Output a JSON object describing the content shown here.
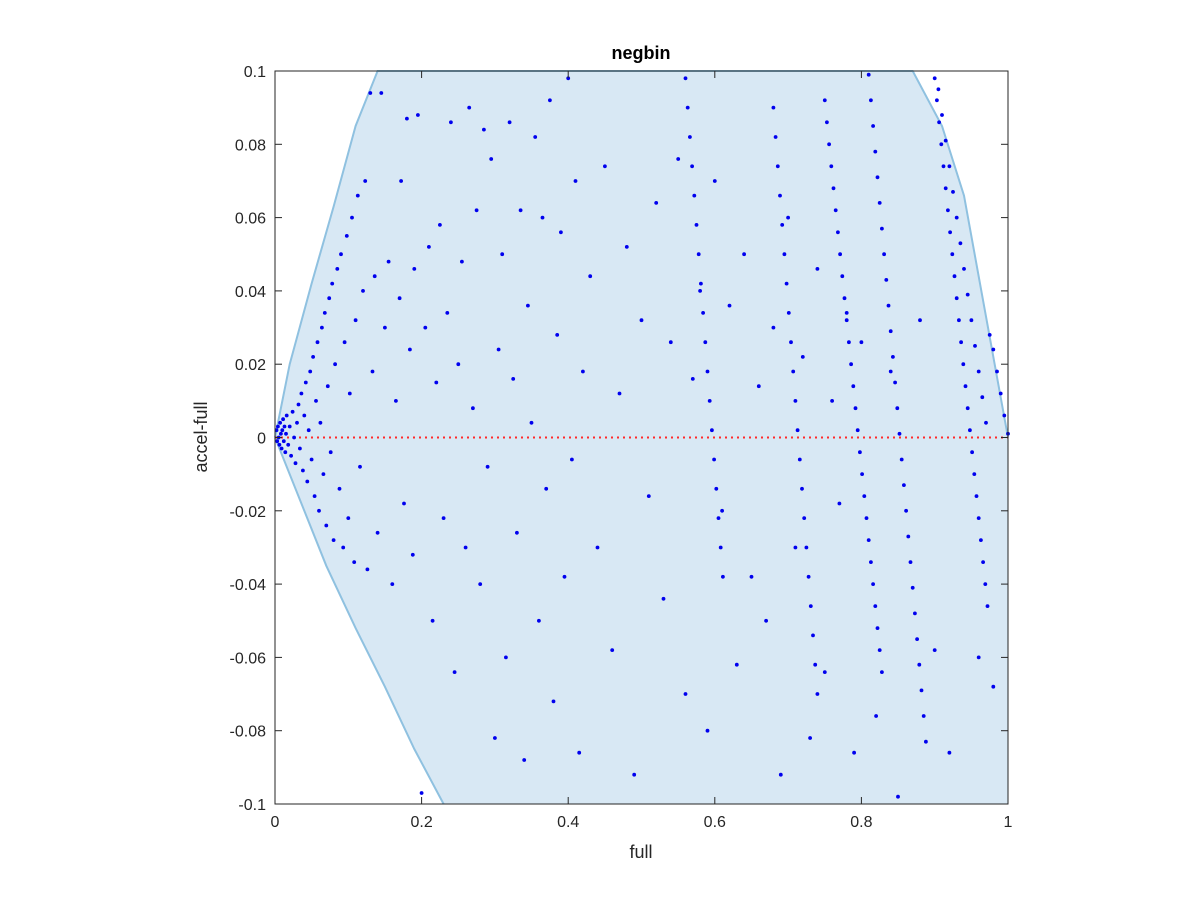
{
  "chart_data": {
    "type": "scatter",
    "title": "negbin",
    "xlabel": "full",
    "ylabel": "accel-full",
    "xlim": [
      0,
      1
    ],
    "ylim": [
      -0.1,
      0.1
    ],
    "xticks": [
      0,
      0.2,
      0.4,
      0.6,
      0.8,
      1
    ],
    "xtick_labels": [
      "0",
      "0.2",
      "0.4",
      "0.6",
      "0.8",
      "1"
    ],
    "yticks": [
      -0.1,
      -0.08,
      -0.06,
      -0.04,
      -0.02,
      0,
      0.02,
      0.04,
      0.06,
      0.08,
      0.1
    ],
    "ytick_labels": [
      "-0.1",
      "-0.08",
      "-0.06",
      "-0.04",
      "-0.02",
      "0",
      "0.02",
      "0.04",
      "0.06",
      "0.08",
      "0.1"
    ],
    "grid": false,
    "colors": {
      "points": "#0000ee",
      "region_fill": "#d8e8f4",
      "region_edge": "#8fc1e0",
      "zero_line": "#ff2a2a",
      "axes": "#262626"
    },
    "reference_line": {
      "y": 0,
      "style": "dotted"
    },
    "region_upper": {
      "x": [
        0,
        0.02,
        0.05,
        0.08,
        0.11,
        0.14,
        0.87,
        0.91,
        0.94,
        0.97,
        1.0
      ],
      "y": [
        0,
        0.02,
        0.042,
        0.063,
        0.085,
        0.1,
        0.1,
        0.085,
        0.066,
        0.033,
        0
      ]
    },
    "region_lower": {
      "x": [
        0,
        0.03,
        0.07,
        0.11,
        0.15,
        0.19,
        0.23,
        1.0
      ],
      "y": [
        0,
        -0.015,
        -0.035,
        -0.052,
        -0.068,
        -0.085,
        -0.1,
        -0.1
      ]
    },
    "points": [
      [
        0.002,
        0.002
      ],
      [
        0.003,
        -0.001
      ],
      [
        0.004,
        0.003
      ],
      [
        0.005,
        0.0
      ],
      [
        0.006,
        -0.002
      ],
      [
        0.007,
        0.004
      ],
      [
        0.008,
        0.001
      ],
      [
        0.009,
        -0.003
      ],
      [
        0.01,
        0.002
      ],
      [
        0.011,
        0.005
      ],
      [
        0.012,
        -0.001
      ],
      [
        0.013,
        0.003
      ],
      [
        0.014,
        -0.004
      ],
      [
        0.015,
        0.001
      ],
      [
        0.016,
        0.006
      ],
      [
        0.018,
        -0.002
      ],
      [
        0.02,
        0.003
      ],
      [
        0.022,
        -0.005
      ],
      [
        0.024,
        0.007
      ],
      [
        0.026,
        0.0
      ],
      [
        0.028,
        -0.007
      ],
      [
        0.03,
        0.004
      ],
      [
        0.032,
        0.009
      ],
      [
        0.034,
        -0.003
      ],
      [
        0.036,
        0.012
      ],
      [
        0.038,
        -0.009
      ],
      [
        0.04,
        0.006
      ],
      [
        0.042,
        0.015
      ],
      [
        0.044,
        -0.012
      ],
      [
        0.046,
        0.002
      ],
      [
        0.048,
        0.018
      ],
      [
        0.05,
        -0.006
      ],
      [
        0.052,
        0.022
      ],
      [
        0.054,
        -0.016
      ],
      [
        0.056,
        0.01
      ],
      [
        0.058,
        0.026
      ],
      [
        0.06,
        -0.02
      ],
      [
        0.062,
        0.004
      ],
      [
        0.064,
        0.03
      ],
      [
        0.066,
        -0.01
      ],
      [
        0.068,
        0.034
      ],
      [
        0.07,
        -0.024
      ],
      [
        0.072,
        0.014
      ],
      [
        0.074,
        0.038
      ],
      [
        0.076,
        -0.004
      ],
      [
        0.078,
        0.042
      ],
      [
        0.08,
        -0.028
      ],
      [
        0.082,
        0.02
      ],
      [
        0.085,
        0.046
      ],
      [
        0.088,
        -0.014
      ],
      [
        0.09,
        0.05
      ],
      [
        0.093,
        -0.03
      ],
      [
        0.095,
        0.026
      ],
      [
        0.098,
        0.055
      ],
      [
        0.1,
        -0.022
      ],
      [
        0.102,
        0.012
      ],
      [
        0.105,
        0.06
      ],
      [
        0.108,
        -0.034
      ],
      [
        0.11,
        0.032
      ],
      [
        0.113,
        0.066
      ],
      [
        0.116,
        -0.008
      ],
      [
        0.12,
        0.04
      ],
      [
        0.123,
        0.07
      ],
      [
        0.126,
        -0.036
      ],
      [
        0.13,
        0.094
      ],
      [
        0.133,
        0.018
      ],
      [
        0.136,
        0.044
      ],
      [
        0.14,
        -0.026
      ],
      [
        0.145,
        0.094
      ],
      [
        0.15,
        0.03
      ],
      [
        0.155,
        0.048
      ],
      [
        0.16,
        -0.04
      ],
      [
        0.165,
        0.01
      ],
      [
        0.17,
        0.038
      ],
      [
        0.172,
        0.07
      ],
      [
        0.176,
        -0.018
      ],
      [
        0.18,
        0.087
      ],
      [
        0.184,
        0.024
      ],
      [
        0.188,
        -0.032
      ],
      [
        0.19,
        0.046
      ],
      [
        0.195,
        0.088
      ],
      [
        0.2,
        -0.097
      ],
      [
        0.205,
        0.03
      ],
      [
        0.21,
        0.052
      ],
      [
        0.215,
        -0.05
      ],
      [
        0.22,
        0.015
      ],
      [
        0.225,
        0.058
      ],
      [
        0.23,
        -0.022
      ],
      [
        0.235,
        0.034
      ],
      [
        0.24,
        0.086
      ],
      [
        0.245,
        -0.064
      ],
      [
        0.25,
        0.02
      ],
      [
        0.255,
        0.048
      ],
      [
        0.26,
        -0.03
      ],
      [
        0.265,
        0.09
      ],
      [
        0.27,
        0.008
      ],
      [
        0.275,
        0.062
      ],
      [
        0.28,
        -0.04
      ],
      [
        0.285,
        0.084
      ],
      [
        0.29,
        -0.008
      ],
      [
        0.295,
        0.076
      ],
      [
        0.3,
        -0.082
      ],
      [
        0.305,
        0.024
      ],
      [
        0.31,
        0.05
      ],
      [
        0.315,
        -0.06
      ],
      [
        0.32,
        0.086
      ],
      [
        0.325,
        0.016
      ],
      [
        0.33,
        -0.026
      ],
      [
        0.335,
        0.062
      ],
      [
        0.34,
        -0.088
      ],
      [
        0.345,
        0.036
      ],
      [
        0.35,
        0.004
      ],
      [
        0.355,
        0.082
      ],
      [
        0.36,
        -0.05
      ],
      [
        0.365,
        0.06
      ],
      [
        0.37,
        -0.014
      ],
      [
        0.375,
        0.092
      ],
      [
        0.38,
        -0.072
      ],
      [
        0.385,
        0.028
      ],
      [
        0.39,
        0.056
      ],
      [
        0.395,
        -0.038
      ],
      [
        0.4,
        0.098
      ],
      [
        0.405,
        -0.006
      ],
      [
        0.41,
        0.07
      ],
      [
        0.415,
        -0.086
      ],
      [
        0.42,
        0.018
      ],
      [
        0.43,
        0.044
      ],
      [
        0.44,
        -0.03
      ],
      [
        0.45,
        0.074
      ],
      [
        0.46,
        -0.058
      ],
      [
        0.47,
        0.012
      ],
      [
        0.48,
        0.052
      ],
      [
        0.49,
        -0.092
      ],
      [
        0.5,
        0.032
      ],
      [
        0.51,
        -0.016
      ],
      [
        0.52,
        0.064
      ],
      [
        0.53,
        -0.044
      ],
      [
        0.54,
        0.026
      ],
      [
        0.55,
        0.076
      ],
      [
        0.56,
        -0.07
      ],
      [
        0.57,
        0.016
      ],
      [
        0.58,
        0.04
      ],
      [
        0.59,
        -0.08
      ],
      [
        0.6,
        0.07
      ],
      [
        0.61,
        -0.02
      ],
      [
        0.62,
        0.036
      ],
      [
        0.63,
        -0.062
      ],
      [
        0.64,
        0.05
      ],
      [
        0.65,
        -0.038
      ],
      [
        0.66,
        0.014
      ],
      [
        0.67,
        -0.05
      ],
      [
        0.68,
        0.03
      ],
      [
        0.69,
        -0.092
      ],
      [
        0.7,
        0.06
      ],
      [
        0.71,
        -0.03
      ],
      [
        0.72,
        0.022
      ],
      [
        0.73,
        -0.082
      ],
      [
        0.74,
        0.046
      ],
      [
        0.75,
        -0.064
      ],
      [
        0.76,
        0.01
      ],
      [
        0.77,
        -0.018
      ],
      [
        0.78,
        0.034
      ],
      [
        0.79,
        -0.086
      ],
      [
        0.8,
        0.026
      ],
      [
        0.82,
        -0.076
      ],
      [
        0.84,
        0.018
      ],
      [
        0.85,
        -0.098
      ],
      [
        0.88,
        0.032
      ],
      [
        0.9,
        -0.058
      ],
      [
        0.92,
        -0.086
      ],
      [
        0.96,
        -0.06
      ],
      [
        0.98,
        -0.068
      ],
      [
        0.56,
        0.098
      ],
      [
        0.563,
        0.09
      ],
      [
        0.566,
        0.082
      ],
      [
        0.569,
        0.074
      ],
      [
        0.572,
        0.066
      ],
      [
        0.575,
        0.058
      ],
      [
        0.578,
        0.05
      ],
      [
        0.581,
        0.042
      ],
      [
        0.584,
        0.034
      ],
      [
        0.587,
        0.026
      ],
      [
        0.59,
        0.018
      ],
      [
        0.593,
        0.01
      ],
      [
        0.596,
        0.002
      ],
      [
        0.599,
        -0.006
      ],
      [
        0.602,
        -0.014
      ],
      [
        0.605,
        -0.022
      ],
      [
        0.608,
        -0.03
      ],
      [
        0.611,
        -0.038
      ],
      [
        0.68,
        0.09
      ],
      [
        0.683,
        0.082
      ],
      [
        0.686,
        0.074
      ],
      [
        0.689,
        0.066
      ],
      [
        0.692,
        0.058
      ],
      [
        0.695,
        0.05
      ],
      [
        0.698,
        0.042
      ],
      [
        0.701,
        0.034
      ],
      [
        0.704,
        0.026
      ],
      [
        0.707,
        0.018
      ],
      [
        0.71,
        0.01
      ],
      [
        0.713,
        0.002
      ],
      [
        0.716,
        -0.006
      ],
      [
        0.719,
        -0.014
      ],
      [
        0.722,
        -0.022
      ],
      [
        0.725,
        -0.03
      ],
      [
        0.728,
        -0.038
      ],
      [
        0.731,
        -0.046
      ],
      [
        0.734,
        -0.054
      ],
      [
        0.737,
        -0.062
      ],
      [
        0.74,
        -0.07
      ],
      [
        0.75,
        0.092
      ],
      [
        0.753,
        0.086
      ],
      [
        0.756,
        0.08
      ],
      [
        0.759,
        0.074
      ],
      [
        0.762,
        0.068
      ],
      [
        0.765,
        0.062
      ],
      [
        0.768,
        0.056
      ],
      [
        0.771,
        0.05
      ],
      [
        0.774,
        0.044
      ],
      [
        0.777,
        0.038
      ],
      [
        0.78,
        0.032
      ],
      [
        0.783,
        0.026
      ],
      [
        0.786,
        0.02
      ],
      [
        0.789,
        0.014
      ],
      [
        0.792,
        0.008
      ],
      [
        0.795,
        0.002
      ],
      [
        0.798,
        -0.004
      ],
      [
        0.801,
        -0.01
      ],
      [
        0.804,
        -0.016
      ],
      [
        0.807,
        -0.022
      ],
      [
        0.81,
        -0.028
      ],
      [
        0.813,
        -0.034
      ],
      [
        0.816,
        -0.04
      ],
      [
        0.819,
        -0.046
      ],
      [
        0.822,
        -0.052
      ],
      [
        0.825,
        -0.058
      ],
      [
        0.828,
        -0.064
      ],
      [
        0.81,
        0.099
      ],
      [
        0.813,
        0.092
      ],
      [
        0.816,
        0.085
      ],
      [
        0.819,
        0.078
      ],
      [
        0.822,
        0.071
      ],
      [
        0.825,
        0.064
      ],
      [
        0.828,
        0.057
      ],
      [
        0.831,
        0.05
      ],
      [
        0.834,
        0.043
      ],
      [
        0.837,
        0.036
      ],
      [
        0.84,
        0.029
      ],
      [
        0.843,
        0.022
      ],
      [
        0.846,
        0.015
      ],
      [
        0.849,
        0.008
      ],
      [
        0.852,
        0.001
      ],
      [
        0.855,
        -0.006
      ],
      [
        0.858,
        -0.013
      ],
      [
        0.861,
        -0.02
      ],
      [
        0.864,
        -0.027
      ],
      [
        0.867,
        -0.034
      ],
      [
        0.87,
        -0.041
      ],
      [
        0.873,
        -0.048
      ],
      [
        0.876,
        -0.055
      ],
      [
        0.879,
        -0.062
      ],
      [
        0.882,
        -0.069
      ],
      [
        0.885,
        -0.076
      ],
      [
        0.888,
        -0.083
      ],
      [
        0.9,
        0.098
      ],
      [
        0.903,
        0.092
      ],
      [
        0.906,
        0.086
      ],
      [
        0.909,
        0.08
      ],
      [
        0.912,
        0.074
      ],
      [
        0.915,
        0.068
      ],
      [
        0.918,
        0.062
      ],
      [
        0.921,
        0.056
      ],
      [
        0.924,
        0.05
      ],
      [
        0.927,
        0.044
      ],
      [
        0.93,
        0.038
      ],
      [
        0.933,
        0.032
      ],
      [
        0.936,
        0.026
      ],
      [
        0.939,
        0.02
      ],
      [
        0.942,
        0.014
      ],
      [
        0.945,
        0.008
      ],
      [
        0.948,
        0.002
      ],
      [
        0.951,
        -0.004
      ],
      [
        0.954,
        -0.01
      ],
      [
        0.957,
        -0.016
      ],
      [
        0.96,
        -0.022
      ],
      [
        0.963,
        -0.028
      ],
      [
        0.966,
        -0.034
      ],
      [
        0.969,
        -0.04
      ],
      [
        0.972,
        -0.046
      ],
      [
        0.905,
        0.095
      ],
      [
        0.91,
        0.088
      ],
      [
        0.915,
        0.081
      ],
      [
        0.92,
        0.074
      ],
      [
        0.925,
        0.067
      ],
      [
        0.93,
        0.06
      ],
      [
        0.935,
        0.053
      ],
      [
        0.94,
        0.046
      ],
      [
        0.945,
        0.039
      ],
      [
        0.95,
        0.032
      ],
      [
        0.955,
        0.025
      ],
      [
        0.96,
        0.018
      ],
      [
        0.965,
        0.011
      ],
      [
        0.97,
        0.004
      ],
      [
        0.975,
        0.028
      ],
      [
        0.98,
        0.024
      ],
      [
        0.985,
        0.018
      ],
      [
        0.99,
        0.012
      ],
      [
        0.995,
        0.006
      ],
      [
        1.0,
        0.001
      ]
    ]
  }
}
